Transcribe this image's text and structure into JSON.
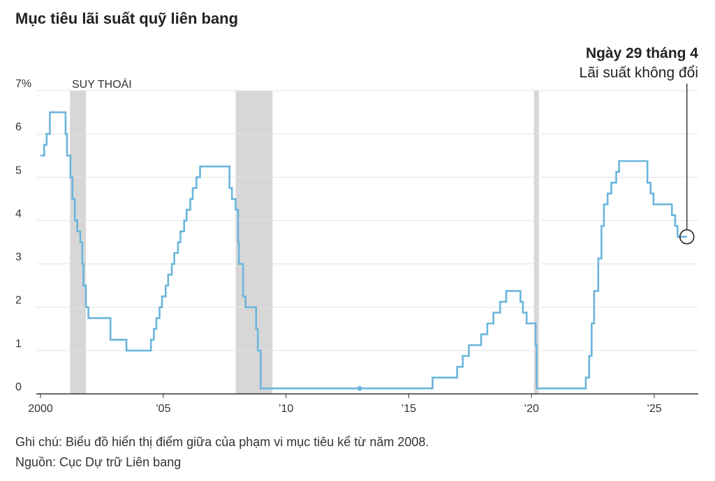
{
  "title": "Mục tiêu lãi suất quỹ liên bang",
  "annotation": {
    "date": "Ngày 29 tháng 4",
    "text": "Lãi suất không đổi"
  },
  "recession_label": "SUY THOÁI",
  "note": "Ghi chú: Biểu đồ hiển thị điểm giữa của phạm vi mục tiêu kể từ năm 2008.",
  "source": "Nguồn: Cục Dự trữ Liên bang",
  "colors": {
    "line": "#6bb5dc",
    "recession": "#d7d7d7",
    "grid": "#e3e3e3",
    "axis": "#333333"
  },
  "chart_data": {
    "type": "line",
    "step": true,
    "xlim": [
      1999.8,
      2026.7
    ],
    "ylim": [
      0,
      7
    ],
    "y_ticks": [
      {
        "v": 0,
        "label": "0"
      },
      {
        "v": 1,
        "label": "1"
      },
      {
        "v": 2,
        "label": "2"
      },
      {
        "v": 3,
        "label": "3"
      },
      {
        "v": 4,
        "label": "4"
      },
      {
        "v": 5,
        "label": "5"
      },
      {
        "v": 6,
        "label": "6"
      },
      {
        "v": 7,
        "label": "7%"
      }
    ],
    "x_ticks": [
      {
        "v": 2000,
        "label": "2000"
      },
      {
        "v": 2005,
        "label": "’05"
      },
      {
        "v": 2010,
        "label": "’10"
      },
      {
        "v": 2015,
        "label": "’15"
      },
      {
        "v": 2020,
        "label": "’20"
      },
      {
        "v": 2025,
        "label": "’25"
      }
    ],
    "recessions": [
      [
        2001.2,
        2001.85
      ],
      [
        2007.95,
        2009.45
      ],
      [
        2020.1,
        2020.3
      ]
    ],
    "highlight_point": [
      2013.0,
      0.125
    ],
    "marker_point": [
      2026.33,
      3.625
    ],
    "series": [
      {
        "points": [
          [
            2000.0,
            5.5
          ],
          [
            2000.15,
            5.75
          ],
          [
            2000.25,
            6.0
          ],
          [
            2000.38,
            6.5
          ],
          [
            2001.0,
            6.5
          ],
          [
            2001.02,
            6.0
          ],
          [
            2001.08,
            5.5
          ],
          [
            2001.22,
            5.0
          ],
          [
            2001.3,
            4.5
          ],
          [
            2001.4,
            4.0
          ],
          [
            2001.5,
            3.75
          ],
          [
            2001.62,
            3.5
          ],
          [
            2001.7,
            3.0
          ],
          [
            2001.75,
            2.5
          ],
          [
            2001.85,
            2.0
          ],
          [
            2001.95,
            1.75
          ],
          [
            2002.85,
            1.25
          ],
          [
            2003.5,
            1.0
          ],
          [
            2004.5,
            1.25
          ],
          [
            2004.62,
            1.5
          ],
          [
            2004.72,
            1.75
          ],
          [
            2004.85,
            2.0
          ],
          [
            2004.95,
            2.25
          ],
          [
            2005.1,
            2.5
          ],
          [
            2005.2,
            2.75
          ],
          [
            2005.35,
            3.0
          ],
          [
            2005.45,
            3.25
          ],
          [
            2005.6,
            3.5
          ],
          [
            2005.7,
            3.75
          ],
          [
            2005.85,
            4.0
          ],
          [
            2005.95,
            4.25
          ],
          [
            2006.1,
            4.5
          ],
          [
            2006.2,
            4.75
          ],
          [
            2006.35,
            5.0
          ],
          [
            2006.5,
            5.25
          ],
          [
            2007.7,
            4.75
          ],
          [
            2007.8,
            4.5
          ],
          [
            2007.95,
            4.25
          ],
          [
            2008.05,
            3.5
          ],
          [
            2008.08,
            3.0
          ],
          [
            2008.25,
            2.25
          ],
          [
            2008.35,
            2.0
          ],
          [
            2008.78,
            1.5
          ],
          [
            2008.85,
            1.0
          ],
          [
            2008.97,
            0.125
          ],
          [
            2015.97,
            0.375
          ],
          [
            2016.97,
            0.625
          ],
          [
            2017.2,
            0.875
          ],
          [
            2017.45,
            1.125
          ],
          [
            2017.95,
            1.375
          ],
          [
            2018.2,
            1.625
          ],
          [
            2018.45,
            1.875
          ],
          [
            2018.72,
            2.125
          ],
          [
            2018.97,
            2.375
          ],
          [
            2019.55,
            2.125
          ],
          [
            2019.65,
            1.875
          ],
          [
            2019.8,
            1.625
          ],
          [
            2020.17,
            1.125
          ],
          [
            2020.21,
            0.125
          ],
          [
            2022.21,
            0.375
          ],
          [
            2022.35,
            0.875
          ],
          [
            2022.45,
            1.625
          ],
          [
            2022.55,
            2.375
          ],
          [
            2022.72,
            3.125
          ],
          [
            2022.85,
            3.875
          ],
          [
            2022.95,
            4.375
          ],
          [
            2023.1,
            4.625
          ],
          [
            2023.25,
            4.875
          ],
          [
            2023.45,
            5.125
          ],
          [
            2023.57,
            5.375
          ],
          [
            2024.72,
            4.875
          ],
          [
            2024.85,
            4.625
          ],
          [
            2024.97,
            4.375
          ],
          [
            2025.72,
            4.125
          ],
          [
            2025.85,
            3.875
          ],
          [
            2025.95,
            3.625
          ],
          [
            2026.33,
            3.625
          ]
        ]
      }
    ]
  }
}
